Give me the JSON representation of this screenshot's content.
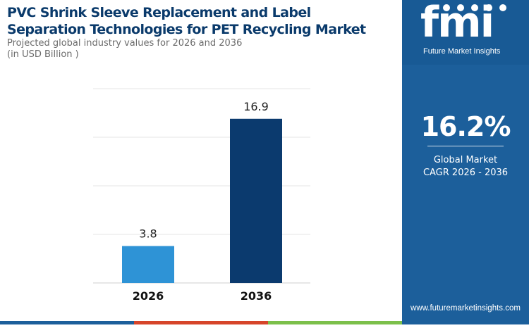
{
  "header": {
    "title_line1": "PVC Shrink Sleeve Replacement and Label",
    "title_line2": "Separation Technologies for PET Recycling Market",
    "subtitle": "Projected global industry values for 2026 and 2036",
    "unit": "(in USD Billion )"
  },
  "chart_data": {
    "type": "bar",
    "title": "PVC Shrink Sleeve Replacement and Label Separation Technologies for PET Recycling Market",
    "subtitle": "Projected global industry values for 2026 and 2036",
    "ylabel": "(in USD Billion )",
    "xlabel": "",
    "categories": [
      "2026",
      "2036"
    ],
    "values": [
      3.8,
      16.9
    ],
    "value_labels": [
      "3.8",
      "16.9"
    ],
    "ylim": [
      0,
      20
    ],
    "grid": true,
    "colors": [
      "#2e93d6",
      "#0b3a6e"
    ]
  },
  "panel": {
    "logo_text": "fmi",
    "logo_subtitle": "Future Market Insights",
    "cagr_value": "16.2%",
    "cagr_label_line1": "Global Market",
    "cagr_label_line2": "CAGR 2026 - 2036",
    "website": "www.futuremarketinsights.com"
  },
  "colors": {
    "panel_bg": "#1c5f9b",
    "title": "#0a3a6b",
    "bottom_bar": [
      "#1c5f9b",
      "#d6452a",
      "#7cc04b"
    ]
  }
}
